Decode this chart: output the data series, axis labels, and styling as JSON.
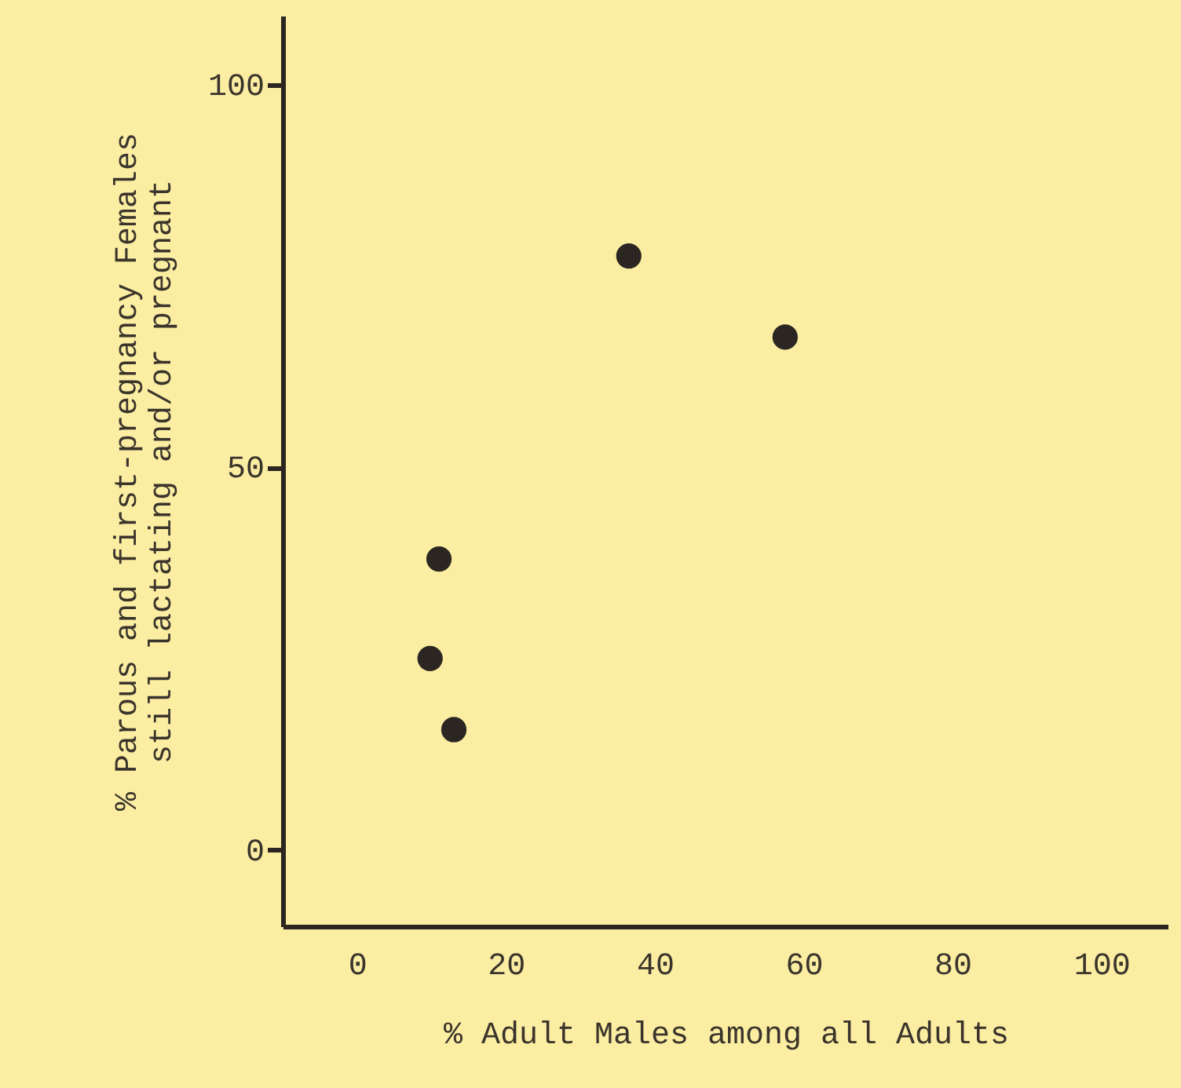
{
  "chart_data": {
    "type": "scatter",
    "xlabel": "% Adult Males among all Adults",
    "ylabel": "% Parous and first-pregnancy Females\nstill lactating and/or pregnant",
    "x": [
      36.5,
      57.5,
      11,
      9.8,
      13
    ],
    "series": [
      {
        "color": "#2b2622",
        "values": [
          77.6,
          67,
          38,
          25,
          15.7
        ]
      }
    ],
    "xlim": [
      -10,
      109
    ],
    "xticks": [
      0,
      20,
      40,
      60,
      80,
      100
    ],
    "ylim": [
      -10,
      109
    ],
    "yticks": [
      0,
      50,
      100
    ],
    "marker": "circle",
    "grid": false
  }
}
